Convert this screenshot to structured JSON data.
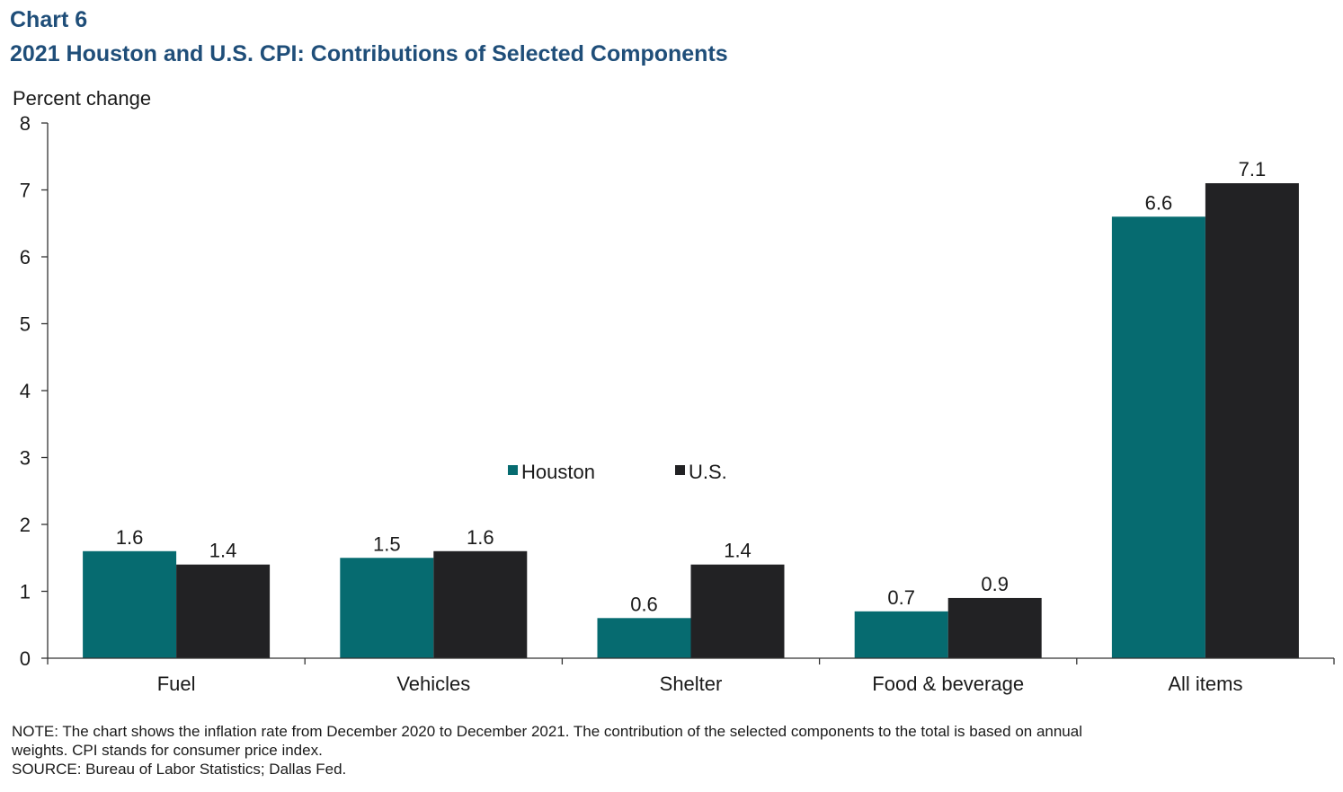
{
  "header": {
    "chart_number": "Chart 6",
    "title": "2021 Houston and U.S. CPI: Contributions of Selected Components"
  },
  "colors": {
    "houston": "#066b70",
    "us": "#222224",
    "axis": "#333333"
  },
  "chart_data": {
    "type": "bar",
    "title": "2021 Houston and U.S. CPI: Contributions of Selected Components",
    "ylabel": "Percent change",
    "xlabel": "",
    "ylim": [
      0,
      8
    ],
    "yticks": [
      "0",
      "1",
      "2",
      "3",
      "4",
      "5",
      "6",
      "7",
      "8"
    ],
    "categories": [
      "Fuel",
      "Vehicles",
      "Shelter",
      "Food & beverage",
      "All items"
    ],
    "series": [
      {
        "name": "Houston",
        "values": [
          1.6,
          1.5,
          0.6,
          0.7,
          6.6
        ],
        "labels": [
          "1.6",
          "1.5",
          "0.6",
          "0.7",
          "6.6"
        ]
      },
      {
        "name": "U.S.",
        "values": [
          1.4,
          1.6,
          1.4,
          0.9,
          7.1
        ],
        "labels": [
          "1.4",
          "1.6",
          "1.4",
          "0.9",
          "7.1"
        ]
      }
    ],
    "legend_position": "center"
  },
  "footer": {
    "note_line1": "NOTE: The chart shows the inflation rate from December 2020 to December 2021. The contribution of the selected components to the total is based on annual",
    "note_line2": "weights. CPI stands for consumer price index.",
    "source": "SOURCE: Bureau of Labor Statistics; Dallas Fed."
  }
}
